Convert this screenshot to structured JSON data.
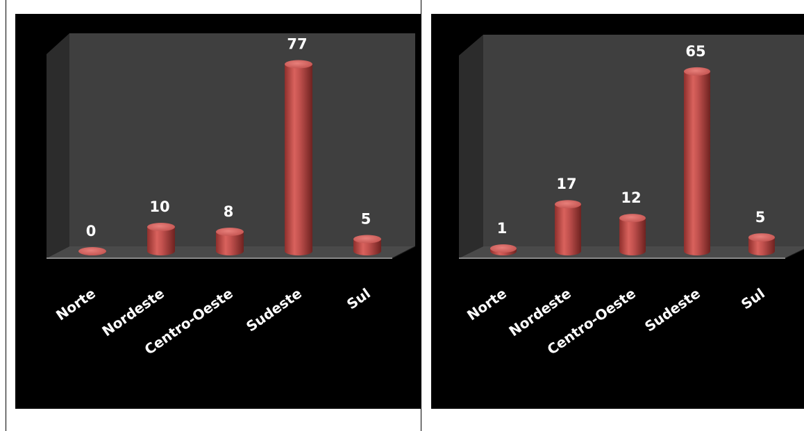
{
  "chart_data": [
    {
      "type": "bar",
      "categories": [
        "Norte",
        "Nordeste",
        "Centro-Oeste",
        "Sudeste",
        "Sul"
      ],
      "values": [
        0,
        10,
        8,
        77,
        5
      ],
      "title": "",
      "xlabel": "",
      "ylabel": "",
      "ylim": [
        0,
        80
      ],
      "grid": false,
      "legend": "none",
      "style": "3d-cylinder",
      "bar_color": "#c0504d",
      "value_label_color": "#ffffff"
    },
    {
      "type": "bar",
      "categories": [
        "Norte",
        "Nordeste",
        "Centro-Oeste",
        "Sudeste",
        "Sul"
      ],
      "values": [
        1,
        17,
        12,
        65,
        5
      ],
      "title": "",
      "xlabel": "",
      "ylabel": "",
      "ylim": [
        0,
        70
      ],
      "grid": false,
      "legend": "none",
      "style": "3d-cylinder",
      "bar_color": "#c0504d",
      "value_label_color": "#ffffff"
    }
  ],
  "colors": {
    "page_background": "#ffffff",
    "chart_background": "#000000",
    "back_wall": "#3f3f3f",
    "side_wall": "#2c2c2c",
    "floor": "#4a4a4a",
    "bar": "#c0504d",
    "text": "#ffffff"
  }
}
